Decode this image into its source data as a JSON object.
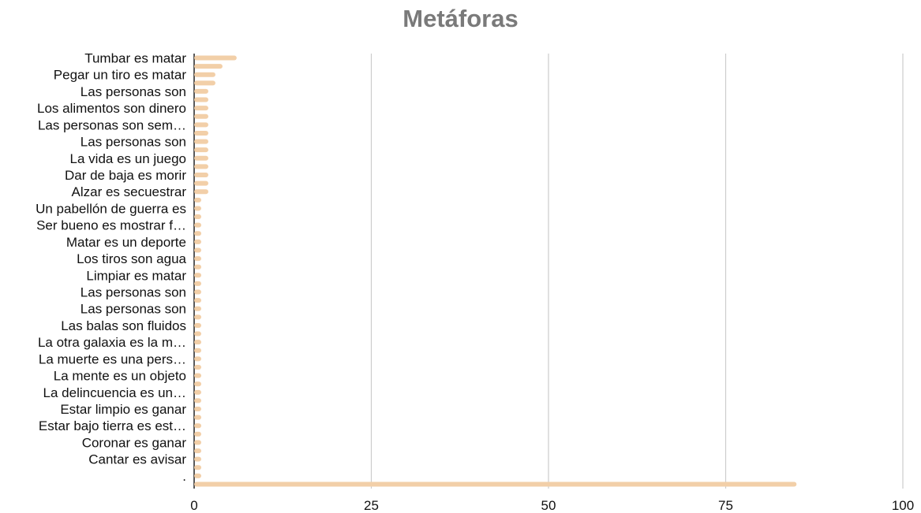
{
  "chart_data": {
    "type": "bar",
    "orientation": "horizontal",
    "title": "Metáforas",
    "bar_color": "#f2cfa8",
    "grid": true,
    "grid_color": "#cccccc",
    "xlim": [
      0,
      100
    ],
    "x_ticks": [
      0,
      25,
      50,
      75,
      100
    ],
    "labeled_categories": [
      "Tumbar es matar",
      "Pegar un tiro es matar",
      "Las personas son",
      "Los alimentos son dinero",
      "Las personas son sem…",
      "Las personas son",
      "La vida es un juego",
      "Dar de baja es morir",
      "Alzar es secuestrar",
      "Un pabellón de guerra es",
      "Ser bueno es mostrar f…",
      "Matar es un deporte",
      "Los tiros son agua",
      "Limpiar es matar",
      "Las personas son",
      "Las personas son",
      "Las balas son fluidos",
      "La otra galaxia es la m…",
      "La muerte es una pers…",
      "La mente es un objeto",
      "La delincuencia es un…",
      "Estar limpio es ganar",
      "Estar bajo tierra es est…",
      "Coronar es ganar",
      "Cantar es avisar",
      "."
    ],
    "values": [
      6,
      4,
      3,
      3,
      2,
      2,
      2,
      2,
      2,
      2,
      2,
      2,
      2,
      2,
      2,
      2,
      2,
      1,
      1,
      1,
      1,
      1,
      1,
      1,
      1,
      1,
      1,
      1,
      1,
      1,
      1,
      1,
      1,
      1,
      1,
      1,
      1,
      1,
      1,
      1,
      1,
      1,
      1,
      1,
      1,
      1,
      1,
      1,
      1,
      1,
      1,
      85
    ]
  }
}
